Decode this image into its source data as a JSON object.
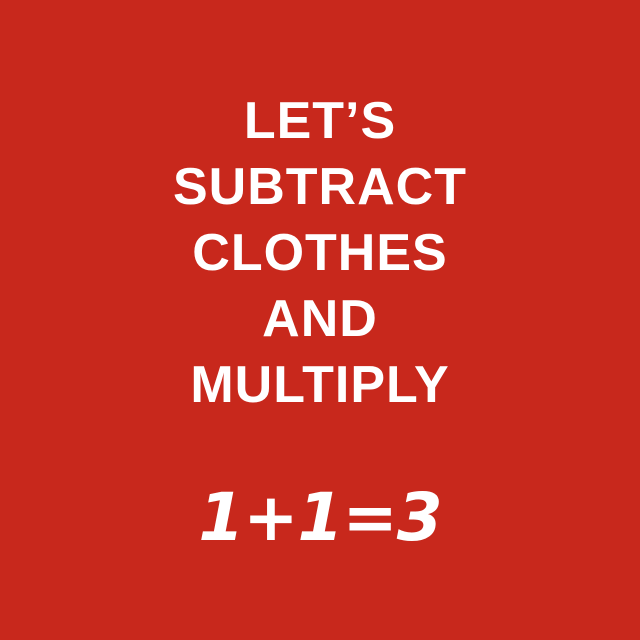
{
  "poster": {
    "background_color": "#c8281c",
    "text_color": "#ffffff",
    "headline_lines": [
      "LET’S",
      "SUBTRACT",
      "CLOTHES",
      "AND",
      "MULTIPLY"
    ],
    "equation": "1+1=3"
  }
}
